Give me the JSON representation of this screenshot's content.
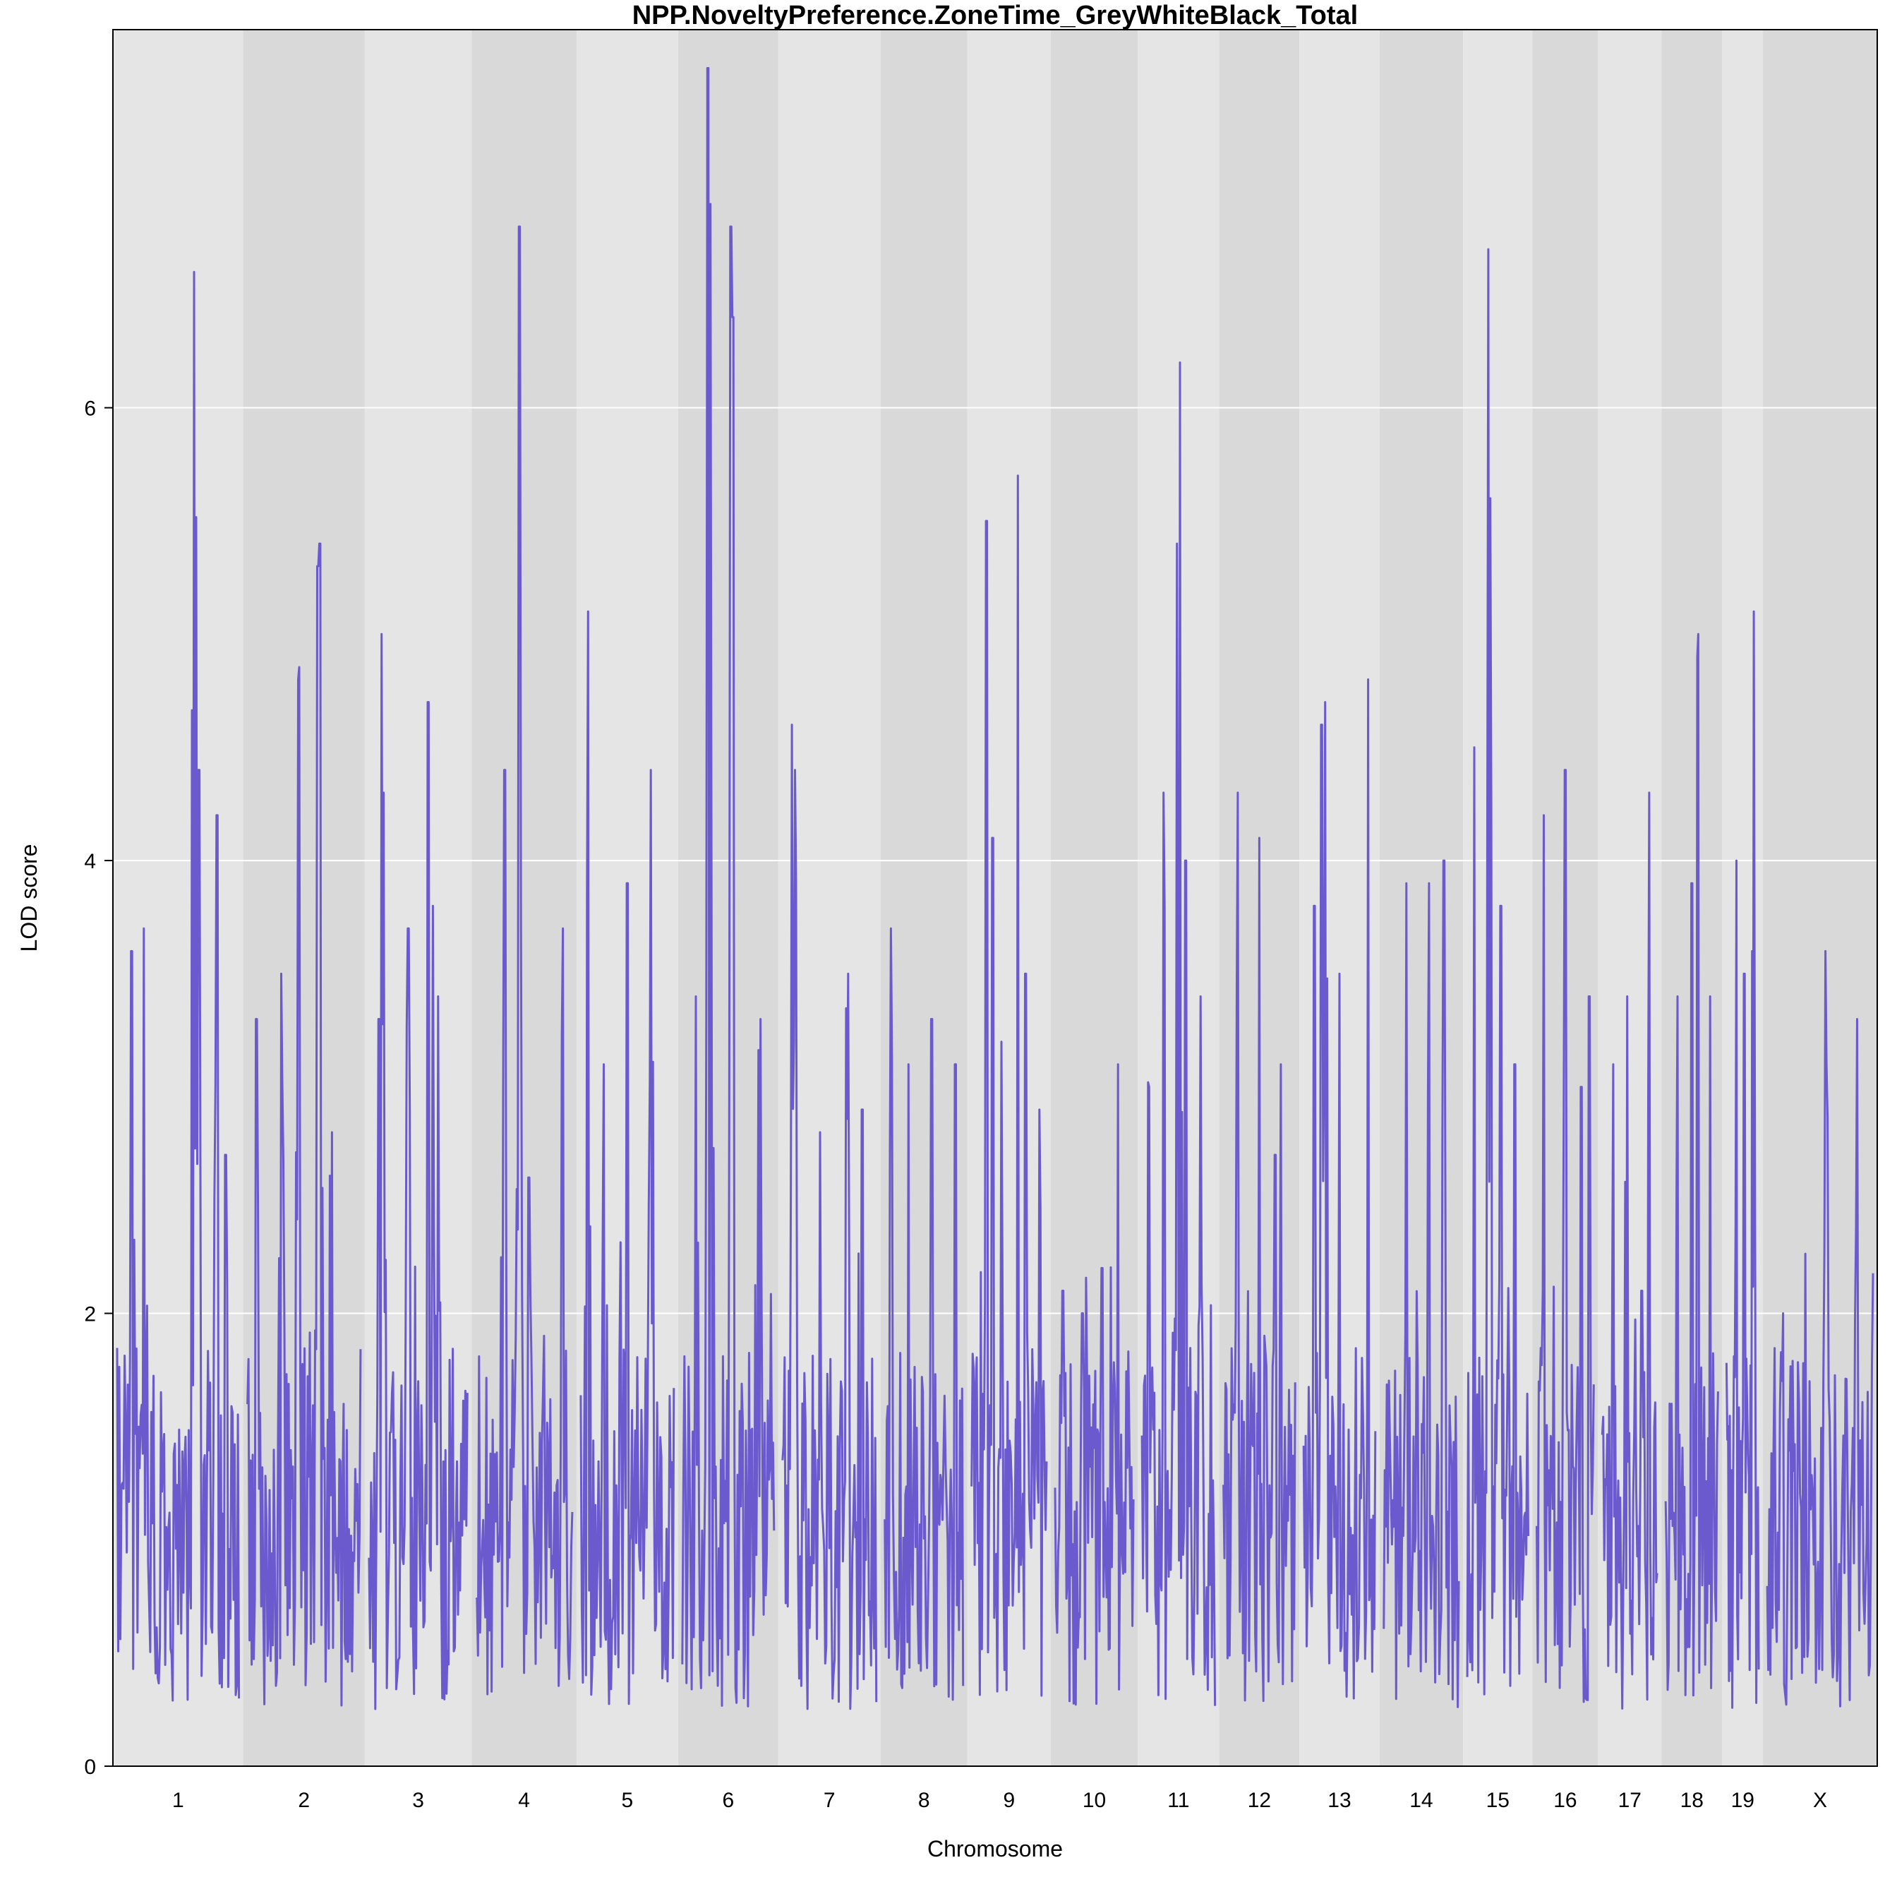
{
  "chart_data": {
    "type": "line",
    "title": "NPP.NoveltyPreference.ZoneTime_GreyWhiteBlack_Total",
    "xlabel": "Chromosome",
    "ylabel": "LOD score",
    "ylim": [
      0,
      7.67
    ],
    "yticks": [
      0,
      2,
      4,
      6
    ],
    "grid": "horizontal at y ticks",
    "background_bands": "alternating light/dark grey per chromosome",
    "line_color": "#6a5acd",
    "band_colors": {
      "light": "#e5e5e5",
      "dark": "#d9d9d9"
    },
    "chromosomes": [
      {
        "label": "1",
        "len": 195,
        "peaks": [
          [
            0.12,
            3.6
          ],
          [
            0.22,
            3.7
          ],
          [
            0.63,
            6.6
          ],
          [
            0.67,
            4.4
          ],
          [
            0.82,
            4.2
          ],
          [
            0.89,
            2.7
          ]
        ]
      },
      {
        "label": "2",
        "len": 182,
        "peaks": [
          [
            0.08,
            3.3
          ],
          [
            0.3,
            3.5
          ],
          [
            0.45,
            4.8
          ],
          [
            0.62,
            5.3
          ],
          [
            0.64,
            5.4
          ],
          [
            0.75,
            2.8
          ]
        ]
      },
      {
        "label": "3",
        "len": 160,
        "peaks": [
          [
            0.1,
            3.3
          ],
          [
            0.13,
            5.0
          ],
          [
            0.15,
            4.3
          ],
          [
            0.4,
            3.7
          ],
          [
            0.6,
            4.7
          ],
          [
            0.65,
            3.8
          ],
          [
            0.7,
            3.4
          ]
        ]
      },
      {
        "label": "4",
        "len": 157,
        "peaks": [
          [
            0.3,
            4.4
          ],
          [
            0.45,
            6.8
          ],
          [
            0.55,
            2.6
          ],
          [
            0.9,
            3.7
          ]
        ]
      },
      {
        "label": "5",
        "len": 152,
        "peaks": [
          [
            0.08,
            5.1
          ],
          [
            0.25,
            3.1
          ],
          [
            0.5,
            3.9
          ],
          [
            0.75,
            4.4
          ]
        ]
      },
      {
        "label": "6",
        "len": 150,
        "peaks": [
          [
            0.15,
            3.4
          ],
          [
            0.28,
            7.5
          ],
          [
            0.31,
            6.9
          ],
          [
            0.53,
            6.8
          ],
          [
            0.55,
            6.4
          ],
          [
            0.85,
            3.3
          ]
        ]
      },
      {
        "label": "7",
        "len": 153,
        "peaks": [
          [
            0.1,
            4.6
          ],
          [
            0.13,
            4.4
          ],
          [
            0.4,
            2.8
          ],
          [
            0.7,
            3.5
          ],
          [
            0.85,
            2.9
          ]
        ]
      },
      {
        "label": "8",
        "len": 130,
        "peaks": [
          [
            0.08,
            3.7
          ],
          [
            0.3,
            3.1
          ],
          [
            0.6,
            3.3
          ],
          [
            0.9,
            3.1
          ]
        ]
      },
      {
        "label": "9",
        "len": 125,
        "peaks": [
          [
            0.2,
            5.5
          ],
          [
            0.28,
            4.1
          ],
          [
            0.4,
            3.2
          ],
          [
            0.62,
            5.7
          ],
          [
            0.72,
            3.5
          ],
          [
            0.9,
            2.9
          ]
        ]
      },
      {
        "label": "10",
        "len": 130,
        "peaks": [
          [
            0.1,
            2.1
          ],
          [
            0.35,
            2.0
          ],
          [
            0.6,
            2.2
          ],
          [
            0.8,
            3.1
          ]
        ]
      },
      {
        "label": "11",
        "len": 122,
        "peaks": [
          [
            0.1,
            3.0
          ],
          [
            0.3,
            4.3
          ],
          [
            0.48,
            5.4
          ],
          [
            0.52,
            6.2
          ],
          [
            0.6,
            4.0
          ],
          [
            0.8,
            3.4
          ]
        ]
      },
      {
        "label": "12",
        "len": 120,
        "peaks": [
          [
            0.2,
            4.3
          ],
          [
            0.5,
            4.1
          ],
          [
            0.72,
            2.7
          ],
          [
            0.8,
            3.1
          ]
        ]
      },
      {
        "label": "13",
        "len": 120,
        "peaks": [
          [
            0.15,
            3.8
          ],
          [
            0.25,
            4.6
          ],
          [
            0.3,
            4.7
          ],
          [
            0.5,
            3.5
          ],
          [
            0.9,
            4.8
          ]
        ]
      },
      {
        "label": "14",
        "len": 125,
        "peaks": [
          [
            0.3,
            3.9
          ],
          [
            0.6,
            3.9
          ],
          [
            0.8,
            4.0
          ]
        ]
      },
      {
        "label": "15",
        "len": 104,
        "peaks": [
          [
            0.12,
            4.5
          ],
          [
            0.35,
            6.7
          ],
          [
            0.38,
            5.6
          ],
          [
            0.55,
            3.8
          ],
          [
            0.78,
            3.1
          ]
        ]
      },
      {
        "label": "16",
        "len": 98,
        "peaks": [
          [
            0.12,
            4.2
          ],
          [
            0.5,
            4.4
          ],
          [
            0.78,
            3.0
          ],
          [
            0.92,
            3.4
          ]
        ]
      },
      {
        "label": "17",
        "len": 95,
        "peaks": [
          [
            0.2,
            3.1
          ],
          [
            0.45,
            3.4
          ],
          [
            0.72,
            2.1
          ],
          [
            0.85,
            4.3
          ]
        ]
      },
      {
        "label": "18",
        "len": 91,
        "peaks": [
          [
            0.22,
            3.4
          ],
          [
            0.5,
            3.9
          ],
          [
            0.6,
            4.9
          ],
          [
            0.62,
            5.0
          ],
          [
            0.85,
            3.4
          ]
        ]
      },
      {
        "label": "19",
        "len": 61,
        "peaks": [
          [
            0.3,
            4.0
          ],
          [
            0.55,
            3.5
          ],
          [
            0.8,
            3.6
          ],
          [
            0.85,
            5.1
          ]
        ]
      },
      {
        "label": "X",
        "len": 171,
        "peaks": [
          [
            0.15,
            2.0
          ],
          [
            0.4,
            1.7
          ],
          [
            0.55,
            3.6
          ],
          [
            0.85,
            3.3
          ]
        ]
      }
    ]
  }
}
